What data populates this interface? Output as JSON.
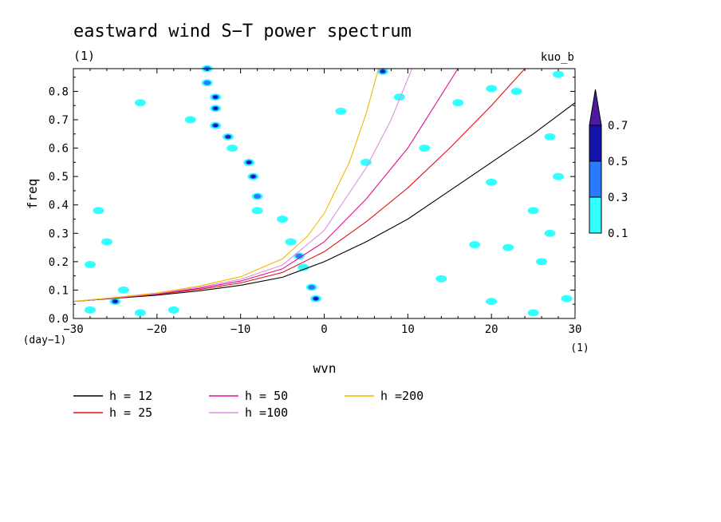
{
  "chart_data": {
    "type": "contour",
    "title": "eastward wind S−T power spectrum",
    "subtitle": "(1)",
    "corner_label": "kuo_b",
    "xlabel": "wvn",
    "ylabel": "freq",
    "x_unit": "(1)",
    "y_unit": "(day−1)",
    "xlim": [
      -30,
      30
    ],
    "ylim": [
      0,
      0.88
    ],
    "x_ticks": [
      -30,
      -20,
      -10,
      0,
      10,
      20,
      30
    ],
    "x_tick_labels": [
      "−30",
      "−20",
      "−10",
      "0",
      "10",
      "20",
      "30"
    ],
    "y_ticks": [
      0,
      0.1,
      0.2,
      0.3,
      0.4,
      0.5,
      0.6,
      0.7,
      0.8
    ],
    "y_tick_labels": [
      "0.0",
      "0.1",
      "0.2",
      "0.3",
      "0.4",
      "0.5",
      "0.6",
      "0.7",
      "0.8"
    ],
    "colorbar": {
      "levels": [
        0.1,
        0.3,
        0.5,
        0.7
      ],
      "labels": [
        "0.1",
        "0.3",
        "0.5",
        "0.7"
      ],
      "colors": [
        "#33ffff",
        "#2a7bff",
        "#1414aa",
        "#4b1aa0"
      ]
    },
    "series": [
      {
        "name": "h = 12",
        "label": "h = 12",
        "h": 12,
        "color": "#000000",
        "x": [
          -30,
          -25,
          -20,
          -15,
          -10,
          -5,
          0,
          5,
          10,
          15,
          20,
          25,
          30
        ],
        "y": [
          0.06,
          0.071,
          0.082,
          0.097,
          0.117,
          0.145,
          0.2,
          0.27,
          0.35,
          0.45,
          0.55,
          0.65,
          0.76
        ]
      },
      {
        "name": "h = 25",
        "label": "h = 25",
        "h": 25,
        "color": "#e01010",
        "x": [
          -30,
          -25,
          -20,
          -15,
          -10,
          -5,
          0,
          5,
          10,
          15,
          20,
          24
        ],
        "y": [
          0.06,
          0.072,
          0.085,
          0.102,
          0.125,
          0.162,
          0.235,
          0.34,
          0.46,
          0.6,
          0.75,
          0.88
        ]
      },
      {
        "name": "h = 50",
        "label": "h = 50",
        "h": 50,
        "color": "#e01090",
        "x": [
          -30,
          -25,
          -20,
          -15,
          -10,
          -5,
          0,
          5,
          10,
          13,
          16
        ],
        "y": [
          0.06,
          0.073,
          0.087,
          0.106,
          0.132,
          0.175,
          0.27,
          0.42,
          0.6,
          0.74,
          0.88
        ]
      },
      {
        "name": "h =100",
        "label": "h =100",
        "h": 100,
        "color": "#dd90e0",
        "x": [
          -30,
          -25,
          -20,
          -15,
          -10,
          -5,
          0,
          5,
          8,
          10.5
        ],
        "y": [
          0.06,
          0.073,
          0.088,
          0.11,
          0.138,
          0.188,
          0.31,
          0.53,
          0.7,
          0.88
        ]
      },
      {
        "name": "h =200",
        "label": "h =200",
        "h": 200,
        "color": "#f0b800",
        "x": [
          -30,
          -25,
          -20,
          -15,
          -10,
          -5,
          -2,
          0,
          3,
          5,
          6.5
        ],
        "y": [
          0.06,
          0.074,
          0.09,
          0.114,
          0.147,
          0.21,
          0.29,
          0.37,
          0.55,
          0.72,
          0.88
        ]
      }
    ],
    "features": [
      {
        "band": "westward diagonal",
        "points": [
          [
            -14,
            0.88,
            0.3
          ],
          [
            -14,
            0.83,
            0.3
          ],
          [
            -13,
            0.78,
            0.5
          ],
          [
            -13,
            0.74,
            0.5
          ],
          [
            -13,
            0.68,
            0.5
          ],
          [
            -11.5,
            0.64,
            0.7
          ],
          [
            -11,
            0.6,
            0.1
          ],
          [
            -9,
            0.55,
            0.5
          ],
          [
            -8.5,
            0.5,
            0.5
          ],
          [
            -8,
            0.43,
            0.3
          ],
          [
            -8,
            0.38,
            0.1
          ],
          [
            -5,
            0.35,
            0.1
          ],
          [
            -4,
            0.27,
            0.1
          ],
          [
            -3,
            0.22,
            0.3
          ],
          [
            -2.5,
            0.18,
            0.1
          ],
          [
            -1.5,
            0.11,
            0.3
          ],
          [
            -1,
            0.07,
            0.5
          ],
          [
            7,
            0.87,
            0.5
          ]
        ]
      },
      {
        "band": "scattered",
        "points": [
          [
            -27,
            0.38,
            0.1
          ],
          [
            -26,
            0.27,
            0.1
          ],
          [
            -28,
            0.19,
            0.1
          ],
          [
            -25,
            0.06,
            0.5
          ],
          [
            -24,
            0.1,
            0.1
          ],
          [
            -28,
            0.03,
            0.1
          ],
          [
            -22,
            0.02,
            0.1
          ],
          [
            -18,
            0.03,
            0.1
          ],
          [
            -22,
            0.76,
            0.1
          ],
          [
            -16,
            0.7,
            0.1
          ],
          [
            2,
            0.73,
            0.1
          ],
          [
            5,
            0.55,
            0.1
          ],
          [
            9,
            0.78,
            0.1
          ],
          [
            12,
            0.6,
            0.1
          ],
          [
            16,
            0.76,
            0.1
          ],
          [
            20,
            0.81,
            0.1
          ],
          [
            23,
            0.8,
            0.1
          ],
          [
            27,
            0.64,
            0.1
          ],
          [
            28,
            0.86,
            0.1
          ],
          [
            20,
            0.48,
            0.1
          ],
          [
            25,
            0.38,
            0.1
          ],
          [
            28,
            0.5,
            0.1
          ],
          [
            22,
            0.25,
            0.1
          ],
          [
            26,
            0.2,
            0.1
          ],
          [
            20,
            0.06,
            0.1
          ],
          [
            25,
            0.02,
            0.1
          ],
          [
            29,
            0.07,
            0.1
          ],
          [
            14,
            0.14,
            0.1
          ],
          [
            18,
            0.26,
            0.1
          ],
          [
            27,
            0.3,
            0.1
          ]
        ]
      }
    ]
  }
}
